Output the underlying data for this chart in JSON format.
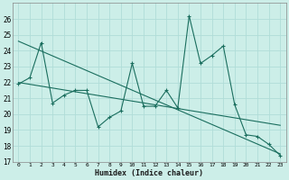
{
  "xlabel": "Humidex (Indice chaleur)",
  "bg_color": "#cceee8",
  "line_color": "#1a6e5e",
  "grid_color": "#b0ddd8",
  "ylim": [
    17,
    27
  ],
  "xlim": [
    -0.5,
    23.5
  ],
  "yticks": [
    17,
    18,
    19,
    20,
    21,
    22,
    23,
    24,
    25,
    26
  ],
  "xticks": [
    0,
    1,
    2,
    3,
    4,
    5,
    6,
    7,
    8,
    9,
    10,
    11,
    12,
    13,
    14,
    15,
    16,
    17,
    18,
    19,
    20,
    21,
    22,
    23
  ],
  "zigzag_x": [
    0,
    1,
    2,
    3,
    4,
    5,
    6,
    7,
    8,
    9,
    10,
    11,
    12,
    13,
    14,
    15,
    16,
    17,
    18,
    19,
    20,
    21,
    22,
    23
  ],
  "zigzag_y": [
    21.9,
    22.3,
    24.5,
    20.7,
    21.2,
    21.5,
    21.5,
    19.2,
    19.8,
    20.2,
    23.2,
    20.5,
    20.5,
    21.5,
    20.4,
    26.2,
    23.2,
    23.7,
    24.3,
    20.6,
    18.7,
    18.6,
    18.1,
    17.4
  ],
  "trend1_x": [
    0,
    23
  ],
  "trend1_y": [
    24.6,
    17.5
  ],
  "trend2_x": [
    0,
    23
  ],
  "trend2_y": [
    22.0,
    19.3
  ]
}
